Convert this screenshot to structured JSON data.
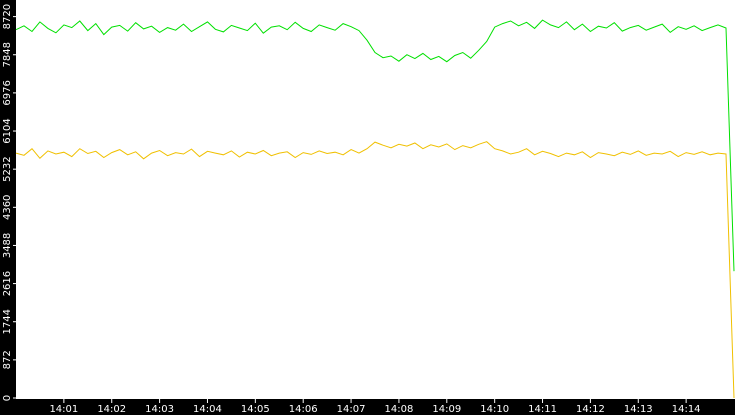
{
  "chart_data": {
    "type": "line",
    "categories": [
      null,
      null,
      null,
      null,
      null,
      null,
      "14:01",
      null,
      null,
      null,
      null,
      null,
      "14:02",
      null,
      null,
      null,
      null,
      null,
      "14:03",
      null,
      null,
      null,
      null,
      null,
      "14:04",
      null,
      null,
      null,
      null,
      null,
      "14:05",
      null,
      null,
      null,
      null,
      null,
      "14:06",
      null,
      null,
      null,
      null,
      null,
      "14:07",
      null,
      null,
      null,
      null,
      null,
      "14:08",
      null,
      null,
      null,
      null,
      null,
      "14:09",
      null,
      null,
      null,
      null,
      null,
      "14:10",
      null,
      null,
      null,
      null,
      null,
      "14:11",
      null,
      null,
      null,
      null,
      null,
      "14:12",
      null,
      null,
      null,
      null,
      null,
      "14:13",
      null,
      null,
      null,
      null,
      null,
      "14:14",
      null,
      null,
      null,
      null,
      null,
      null
    ],
    "series": [
      {
        "color": "#00e000",
        "values": [
          8420,
          8510,
          8380,
          8600,
          8450,
          8350,
          8530,
          8470,
          8620,
          8400,
          8560,
          8310,
          8480,
          8520,
          8390,
          8580,
          8440,
          8500,
          8360,
          8470,
          8410,
          8550,
          8380,
          8490,
          8600,
          8430,
          8370,
          8520,
          8460,
          8400,
          8570,
          8340,
          8480,
          8510,
          8420,
          8590,
          8450,
          8380,
          8530,
          8470,
          8410,
          8560,
          8490,
          8400,
          8180,
          7900,
          7780,
          7820,
          7700,
          7850,
          7760,
          7880,
          7740,
          7810,
          7690,
          7830,
          7900,
          7770,
          7950,
          8150,
          8480,
          8560,
          8620,
          8510,
          8590,
          8450,
          8640,
          8530,
          8470,
          8600,
          8420,
          8550,
          8380,
          8500,
          8460,
          8580,
          8390,
          8470,
          8520,
          8410,
          8480,
          8550,
          8360,
          8490,
          8430,
          8510,
          8400,
          8470,
          8530,
          8460,
          2900
        ]
      },
      {
        "color": "#f0c000",
        "values": [
          5600,
          5550,
          5700,
          5480,
          5650,
          5580,
          5620,
          5520,
          5700,
          5590,
          5640,
          5500,
          5610,
          5680,
          5560,
          5630,
          5470,
          5600,
          5660,
          5540,
          5610,
          5580,
          5690,
          5520,
          5640,
          5600,
          5560,
          5650,
          5510,
          5620,
          5580,
          5660,
          5540,
          5600,
          5630,
          5500,
          5610,
          5570,
          5650,
          5590,
          5620,
          5560,
          5680,
          5600,
          5700,
          5850,
          5780,
          5720,
          5800,
          5760,
          5830,
          5700,
          5790,
          5740,
          5810,
          5680,
          5770,
          5720,
          5800,
          5860,
          5700,
          5650,
          5580,
          5620,
          5700,
          5560,
          5640,
          5590,
          5520,
          5600,
          5560,
          5630,
          5500,
          5610,
          5580,
          5540,
          5620,
          5570,
          5650,
          5550,
          5600,
          5580,
          5640,
          5520,
          5610,
          5570,
          5630,
          5560,
          5600,
          5580,
          0
        ]
      }
    ],
    "ylim": [
      0,
      9100
    ],
    "yticks": [
      0,
      872,
      1744,
      2616,
      3488,
      4360,
      5232,
      6104,
      6976,
      7848,
      8720
    ]
  }
}
